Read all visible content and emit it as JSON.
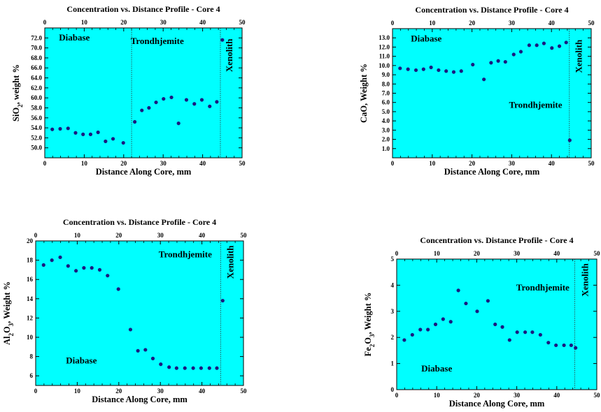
{
  "chart_data": [
    {
      "id": "sio2",
      "type": "scatter",
      "title": "Concentration vs. Distance Profile - Core 4",
      "xlabel": "Distance Along Core, mm",
      "ylabel_parts": [
        {
          "t": "SiO"
        },
        {
          "t": "2",
          "sub": true
        },
        {
          "t": ", weight %"
        }
      ],
      "xlim": [
        0,
        50
      ],
      "ylim": [
        48,
        74
      ],
      "x_ticks": [
        "0",
        "10",
        "20",
        "30",
        "40",
        "50"
      ],
      "y_ticks": [
        "50.0",
        "52.0",
        "54.0",
        "56.0",
        "58.0",
        "60.0",
        "62.0",
        "64.0",
        "66.0",
        "68.0",
        "70.0",
        "72.0"
      ],
      "y_tick_values": [
        50,
        52,
        54,
        56,
        58,
        60,
        62,
        64,
        66,
        68,
        70,
        72
      ],
      "background": "#00ffff",
      "marker_color": "#1a1a80",
      "boundaries": [
        22,
        44.5
      ],
      "annotations": [
        {
          "text": "Diabase",
          "x": 7.5,
          "y": 71.5
        },
        {
          "text": "Trondhjemite",
          "x": 28.5,
          "y": 70.8
        },
        {
          "text": "Xenolith",
          "x": 47.5,
          "y": 68.5,
          "rotate": true
        }
      ],
      "points": [
        [
          1.9,
          53.7
        ],
        [
          3.9,
          53.8
        ],
        [
          5.9,
          53.9
        ],
        [
          7.8,
          53.0
        ],
        [
          9.7,
          52.7
        ],
        [
          11.6,
          52.7
        ],
        [
          13.5,
          53.1
        ],
        [
          15.4,
          51.3
        ],
        [
          17.3,
          51.8
        ],
        [
          19.9,
          51.0
        ],
        [
          22.8,
          55.2
        ],
        [
          24.6,
          57.5
        ],
        [
          26.4,
          58.0
        ],
        [
          28.2,
          59.1
        ],
        [
          30.1,
          59.8
        ],
        [
          32.1,
          60.1
        ],
        [
          33.9,
          54.9
        ],
        [
          35.9,
          59.6
        ],
        [
          37.9,
          58.8
        ],
        [
          39.8,
          59.6
        ],
        [
          41.8,
          58.3
        ],
        [
          43.6,
          59.2
        ],
        [
          45.0,
          71.6
        ]
      ]
    },
    {
      "id": "cao",
      "type": "scatter",
      "title": "Concentration vs. Distance Profile - Core 4",
      "xlabel": "Distance Along Core, mm",
      "ylabel_parts": [
        {
          "t": "CaO, Weight %"
        }
      ],
      "xlim": [
        0,
        50
      ],
      "ylim": [
        0,
        14
      ],
      "x_ticks": [
        "0",
        "10",
        "20",
        "30",
        "40",
        "50"
      ],
      "y_ticks": [
        "1.0",
        "2.0",
        "3.0",
        "4.0",
        "5.0",
        "6.0",
        "7.0",
        "8.0",
        "9.0",
        "10.0",
        "11.0",
        "12.0",
        "13.0"
      ],
      "y_tick_values": [
        1,
        2,
        3,
        4,
        5,
        6,
        7,
        8,
        9,
        10,
        11,
        12,
        13
      ],
      "background": "#00ffff",
      "marker_color": "#1a1a80",
      "boundaries": [
        44.5
      ],
      "annotations": [
        {
          "text": "Diabase",
          "x": 8.5,
          "y": 12.6
        },
        {
          "text": "Trondhjemite",
          "x": 36,
          "y": 5.4
        },
        {
          "text": "Xenolith",
          "x": 47.6,
          "y": 11.0,
          "rotate": true
        }
      ],
      "points": [
        [
          1.9,
          9.7
        ],
        [
          3.9,
          9.6
        ],
        [
          5.9,
          9.5
        ],
        [
          7.8,
          9.6
        ],
        [
          9.7,
          9.8
        ],
        [
          11.6,
          9.5
        ],
        [
          13.5,
          9.4
        ],
        [
          15.4,
          9.3
        ],
        [
          17.3,
          9.4
        ],
        [
          20.2,
          10.1
        ],
        [
          23.0,
          8.5
        ],
        [
          24.8,
          10.3
        ],
        [
          26.6,
          10.5
        ],
        [
          28.4,
          10.4
        ],
        [
          30.5,
          11.2
        ],
        [
          32.3,
          11.5
        ],
        [
          34.4,
          12.2
        ],
        [
          36.3,
          12.2
        ],
        [
          38.1,
          12.4
        ],
        [
          40.1,
          11.9
        ],
        [
          42.0,
          12.1
        ],
        [
          43.7,
          12.5
        ],
        [
          44.6,
          1.9
        ]
      ]
    },
    {
      "id": "al2o3",
      "type": "scatter",
      "title": "Concentration vs. Distance Profile - Core 4",
      "xlabel": "Distance Along Core, mm",
      "ylabel_parts": [
        {
          "t": "Al"
        },
        {
          "t": "2",
          "sub": true
        },
        {
          "t": "O"
        },
        {
          "t": "3",
          "sub": true
        },
        {
          "t": ", Weight %"
        }
      ],
      "xlim": [
        0,
        50
      ],
      "ylim": [
        5,
        20
      ],
      "x_ticks": [
        "0",
        "10",
        "20",
        "30",
        "40",
        "50"
      ],
      "y_ticks": [
        "6",
        "8",
        "10",
        "12",
        "14",
        "16",
        "18",
        "20"
      ],
      "y_tick_values": [
        6,
        8,
        10,
        12,
        14,
        16,
        18,
        20
      ],
      "background": "#00ffff",
      "marker_color": "#1a1a80",
      "boundaries": [
        44.5
      ],
      "annotations": [
        {
          "text": "Diabase",
          "x": 11,
          "y": 7.3
        },
        {
          "text": "Trondhjemite",
          "x": 36,
          "y": 18.3
        },
        {
          "text": "Xenolith",
          "x": 47.6,
          "y": 17.8,
          "rotate": true
        }
      ],
      "points": [
        [
          1.9,
          17.5
        ],
        [
          3.9,
          18.0
        ],
        [
          5.9,
          18.3
        ],
        [
          7.8,
          17.4
        ],
        [
          9.7,
          16.9
        ],
        [
          11.6,
          17.2
        ],
        [
          13.5,
          17.2
        ],
        [
          15.4,
          17.0
        ],
        [
          17.3,
          16.4
        ],
        [
          19.9,
          15.0
        ],
        [
          22.8,
          10.8
        ],
        [
          24.6,
          8.6
        ],
        [
          26.4,
          8.7
        ],
        [
          28.2,
          7.8
        ],
        [
          30.1,
          7.2
        ],
        [
          32.1,
          6.9
        ],
        [
          33.9,
          6.8
        ],
        [
          35.9,
          6.8
        ],
        [
          37.9,
          6.8
        ],
        [
          39.8,
          6.8
        ],
        [
          41.8,
          6.8
        ],
        [
          43.6,
          6.8
        ],
        [
          45.0,
          13.8
        ]
      ]
    },
    {
      "id": "fe2o3",
      "type": "scatter",
      "title": "Concentration vs. Distance Profile - Core 4",
      "xlabel": "Distance Along Core, mm",
      "ylabel_parts": [
        {
          "t": "Fe"
        },
        {
          "t": "2",
          "sub": true
        },
        {
          "t": "O"
        },
        {
          "t": "3",
          "sub": true
        },
        {
          "t": ", Weight %"
        }
      ],
      "xlim": [
        0,
        50
      ],
      "ylim": [
        0,
        5
      ],
      "x_ticks": [
        "0",
        "10",
        "20",
        "30",
        "40",
        "50"
      ],
      "y_ticks": [
        "0",
        "1",
        "2",
        "3",
        "4",
        "5"
      ],
      "y_tick_values": [
        0,
        1,
        2,
        3,
        4,
        5
      ],
      "background": "#00ffff",
      "marker_color": "#1a1a80",
      "boundaries": [
        44.5
      ],
      "annotations": [
        {
          "text": "Diabase",
          "x": 10,
          "y": 0.7
        },
        {
          "text": "Trondhjemite",
          "x": 36.5,
          "y": 3.8
        },
        {
          "text": "Xenolith",
          "x": 47.8,
          "y": 4.2,
          "rotate": true
        }
      ],
      "points": [
        [
          1.9,
          1.9
        ],
        [
          3.9,
          2.1
        ],
        [
          5.9,
          2.3
        ],
        [
          7.8,
          2.3
        ],
        [
          9.7,
          2.5
        ],
        [
          11.6,
          2.7
        ],
        [
          13.5,
          2.6
        ],
        [
          15.4,
          3.8
        ],
        [
          17.3,
          3.3
        ],
        [
          20.1,
          3.0
        ],
        [
          22.8,
          3.4
        ],
        [
          24.6,
          2.5
        ],
        [
          26.4,
          2.4
        ],
        [
          28.2,
          1.9
        ],
        [
          30.1,
          2.2
        ],
        [
          32.1,
          2.2
        ],
        [
          33.9,
          2.2
        ],
        [
          35.9,
          2.1
        ],
        [
          37.9,
          1.8
        ],
        [
          39.8,
          1.7
        ],
        [
          41.8,
          1.7
        ],
        [
          43.6,
          1.7
        ],
        [
          44.7,
          1.6
        ]
      ]
    }
  ]
}
